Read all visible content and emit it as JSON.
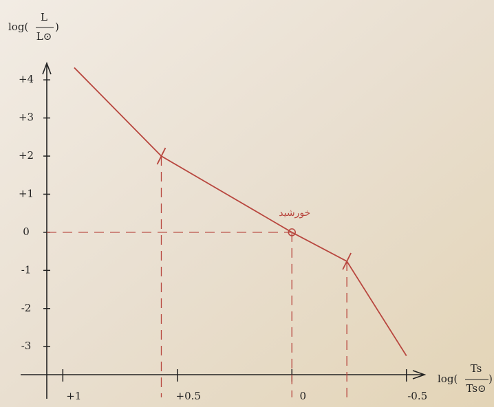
{
  "chart_data": {
    "type": "line",
    "ylabel": {
      "prefix": "log(",
      "numerator": "L",
      "denominator": "L⊙",
      "suffix": ")"
    },
    "xlabel": {
      "prefix": "log(",
      "numerator": "Ts",
      "denominator": "Ts⊙",
      "suffix": ")"
    },
    "annotation": "خورشید",
    "x": [
      0.95,
      0.57,
      0,
      -0.24,
      -0.5
    ],
    "values": [
      4.32,
      2.0,
      0,
      -0.76,
      -3.24
    ],
    "color": "#b8473f",
    "xlim": [
      1.07,
      -0.6
    ],
    "xticks": [
      {
        "value": 1,
        "label": "+1"
      },
      {
        "value": 0.5,
        "label": "+0.5"
      },
      0,
      -0.5
    ],
    "ylim": [
      -3.7,
      4.4
    ],
    "yticks": [
      {
        "value": 4,
        "label": "+4"
      },
      {
        "value": 3,
        "label": "+3"
      },
      {
        "value": 2,
        "label": "+2"
      },
      {
        "value": 1,
        "label": "+1"
      },
      0,
      -1,
      -2,
      -3
    ]
  }
}
